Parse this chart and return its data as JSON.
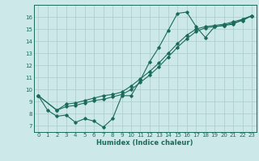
{
  "xlabel": "Humidex (Indice chaleur)",
  "background_color": "#cce8e8",
  "grid_color": "#aacccc",
  "line_color": "#1a6b5a",
  "xlim": [
    -0.5,
    23.5
  ],
  "ylim": [
    6.5,
    17.0
  ],
  "yticks": [
    7,
    8,
    9,
    10,
    11,
    12,
    13,
    14,
    15,
    16
  ],
  "xticks": [
    0,
    1,
    2,
    3,
    4,
    5,
    6,
    7,
    8,
    9,
    10,
    11,
    12,
    13,
    14,
    15,
    16,
    17,
    18,
    19,
    20,
    21,
    22,
    23
  ],
  "line1_x": [
    0,
    1,
    2,
    3,
    4,
    5,
    6,
    7,
    8,
    9,
    10,
    11,
    12,
    13,
    14,
    15,
    16,
    17,
    18,
    19,
    20,
    21,
    22,
    23
  ],
  "line1_y": [
    9.5,
    8.3,
    7.8,
    7.9,
    7.3,
    7.6,
    7.4,
    6.9,
    7.6,
    9.5,
    9.5,
    10.8,
    12.3,
    13.5,
    14.9,
    16.3,
    16.4,
    15.2,
    14.3,
    15.2,
    15.3,
    15.4,
    15.8,
    16.1
  ],
  "line2_x": [
    0,
    2,
    3,
    4,
    5,
    6,
    7,
    8,
    9,
    10,
    11,
    12,
    13,
    14,
    15,
    16,
    17,
    18,
    19,
    20,
    21,
    22,
    23
  ],
  "line2_y": [
    9.5,
    8.3,
    8.8,
    8.9,
    9.1,
    9.3,
    9.5,
    9.6,
    9.8,
    10.3,
    10.9,
    11.5,
    12.2,
    13.0,
    13.8,
    14.5,
    15.0,
    15.2,
    15.3,
    15.4,
    15.6,
    15.8,
    16.1
  ],
  "line3_x": [
    0,
    2,
    3,
    4,
    5,
    6,
    7,
    8,
    9,
    10,
    11,
    12,
    13,
    14,
    15,
    16,
    17,
    18,
    19,
    20,
    21,
    22,
    23
  ],
  "line3_y": [
    9.5,
    8.3,
    8.6,
    8.7,
    8.9,
    9.1,
    9.2,
    9.4,
    9.6,
    10.0,
    10.6,
    11.2,
    11.9,
    12.7,
    13.5,
    14.2,
    14.8,
    15.1,
    15.2,
    15.3,
    15.5,
    15.7,
    16.1
  ]
}
